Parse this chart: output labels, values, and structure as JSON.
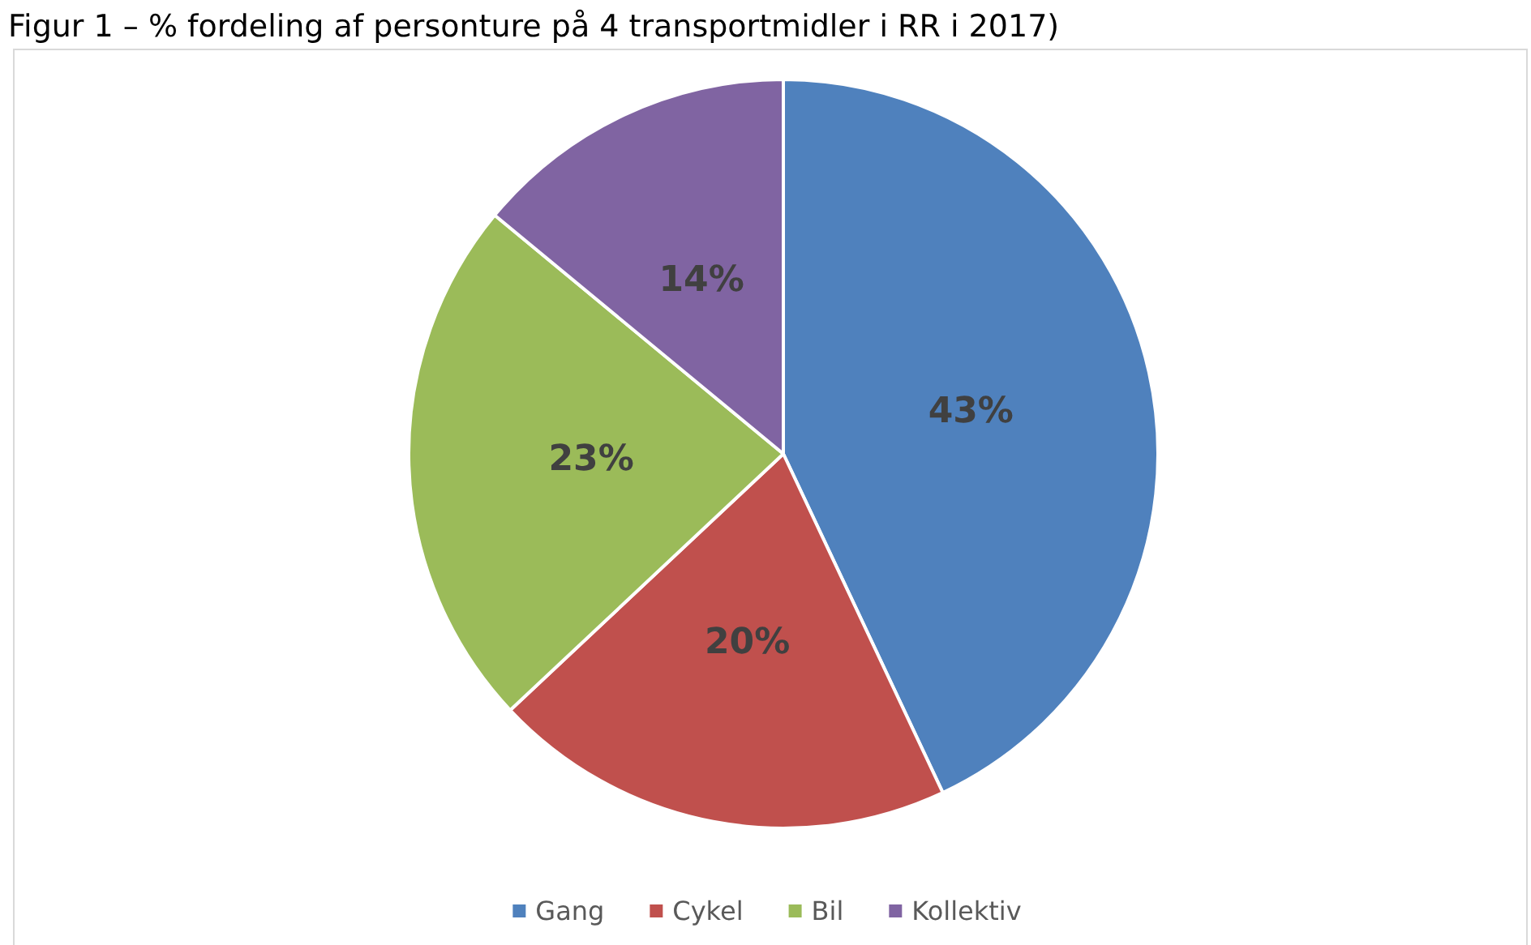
{
  "chart_data": {
    "type": "pie",
    "title": "Figur 1 – % fordeling af personture på 4 transportmidler i RR i 2017)",
    "categories": [
      "Gang",
      "Cykel",
      "Bil",
      "Kollektiv"
    ],
    "values": [
      43,
      20,
      23,
      14
    ],
    "colors": [
      "#4f81bd",
      "#c0504d",
      "#9bbb59",
      "#8064a2"
    ],
    "value_labels": [
      "43%",
      "20%",
      "23%",
      "14%"
    ],
    "legend": "bottom"
  }
}
